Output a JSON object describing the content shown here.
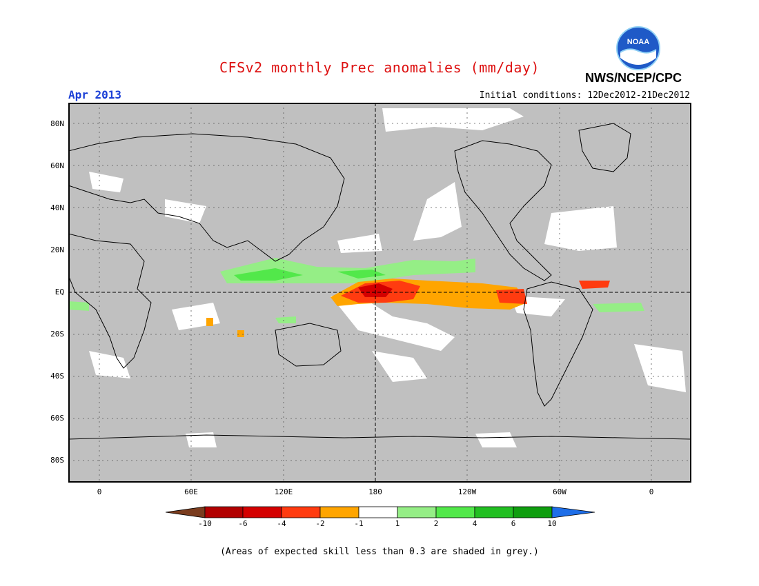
{
  "title": "CFSv2 monthly Prec anomalies (mm/day)",
  "month": "Apr 2013",
  "initial_conditions": "Initial conditions: 12Dec2012-21Dec2012",
  "agency": "NWS/NCEP/CPC",
  "logo_text": "NOAA",
  "footnote": "(Areas of expected skill less than 0.3 are shaded in grey.)",
  "colors": {
    "title": "#dd1111",
    "month": "#1b3fd6",
    "grey_shading": "#c0c0c0",
    "white": "#ffffff",
    "coast": "#000000"
  },
  "lat_labels": [
    "80N",
    "60N",
    "40N",
    "20N",
    "EQ",
    "20S",
    "40S",
    "60S",
    "80S"
  ],
  "lon_labels": [
    "0",
    "60E",
    "120E",
    "180",
    "120W",
    "60W",
    "0"
  ],
  "colorbar": {
    "labels": [
      "-10",
      "-6",
      "-4",
      "-2",
      "-1",
      "1",
      "2",
      "4",
      "6",
      "10"
    ],
    "colors": [
      "#7a3c1e",
      "#b20000",
      "#d40000",
      "#ff3b10",
      "#ffa500",
      "#ffffff",
      "#95ee86",
      "#52e84a",
      "#22bf22",
      "#0f9e0f",
      "#1e6ee8"
    ]
  }
}
